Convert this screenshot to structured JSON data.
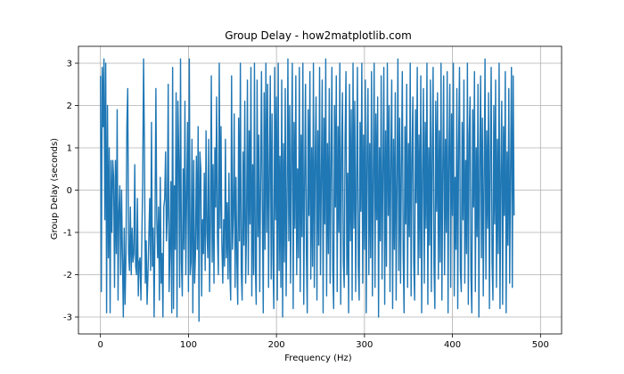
{
  "chart_data": {
    "type": "line",
    "title": "Group Delay - how2matplotlib.com",
    "xlabel": "Frequency (Hz)",
    "ylabel": "Group Delay (seconds)",
    "xlim": [
      -25,
      524
    ],
    "ylim": [
      -3.4,
      3.4
    ],
    "xticks": [
      0,
      100,
      200,
      300,
      400,
      500
    ],
    "yticks": [
      -3,
      -2,
      -1,
      0,
      1,
      2,
      3
    ],
    "grid": true,
    "color": "#1f77b4",
    "series": [
      {
        "x_start": 0,
        "x_step": 1,
        "values": [
          2.7,
          -2.4,
          2.9,
          1.5,
          3.1,
          -0.7,
          3.0,
          -2.9,
          2.0,
          -1.6,
          1.0,
          -2.9,
          0.7,
          -1.0,
          0.7,
          0.3,
          -2.3,
          0.7,
          -1.5,
          1.9,
          -2.6,
          -0.5,
          0.1,
          -2.0,
          0.0,
          -1.6,
          -3.0,
          -0.9,
          -2.7,
          -1.5,
          1.5,
          2.4,
          -1.5,
          -1.9,
          -0.4,
          -2.0,
          -0.9,
          -1.7,
          -1.5,
          0.6,
          -1.8,
          -2.0,
          -0.2,
          -2.5,
          -1.7,
          -1.6,
          -2.6,
          -1.2,
          0.2,
          3.1,
          1.0,
          -2.2,
          -1.2,
          -2.7,
          -2.0,
          -1.1,
          -0.2,
          -1.9,
          1.6,
          -1.8,
          -0.9,
          -3.0,
          -0.8,
          2.4,
          -0.7,
          -1.6,
          -0.4,
          -2.6,
          0.3,
          -2.2,
          -1.5,
          -3.0,
          -0.4,
          -0.2,
          0.9,
          -1.2,
          -0.6,
          2.5,
          -2.4,
          -1.5,
          0.2,
          -2.9,
          2.9,
          -2.8,
          0.1,
          -1.4,
          2.3,
          -3.0,
          2.1,
          0.8,
          -2.3,
          3.1,
          -1.7,
          -2.5,
          0.5,
          -1.4,
          2.1,
          -2.0,
          -0.1,
          1.6,
          -2.4,
          3.1,
          -2.0,
          -1.7,
          1.2,
          -2.9,
          0.7,
          -2.2,
          -1.5,
          0.8,
          -1.4,
          1.5,
          -3.1,
          0.9,
          0.5,
          -2.5,
          -0.7,
          -1.5,
          0.4,
          -1.9,
          1.4,
          -1.0,
          -1.6,
          1.2,
          -2.4,
          -0.8,
          2.7,
          -1.7,
          0.6,
          -2.2,
          1.0,
          -0.4,
          2.2,
          -1.1,
          -2.0,
          3.0,
          -0.9,
          1.5,
          -1.3,
          -2.2,
          -0.7,
          -1.8,
          1.2,
          -1.6,
          -0.3,
          -2.1,
          0.4,
          -1.9,
          -2.6,
          2.7,
          -1.4,
          -0.6,
          1.8,
          -2.3,
          0.3,
          -1.7,
          -2.7,
          1.7,
          -1.2,
          3.0,
          -1.9,
          -2.6,
          0.9,
          -1.3,
          2.1,
          -2.2,
          -0.9,
          2.6,
          -2.0,
          1.4,
          -0.8,
          2.9,
          -2.5,
          0.6,
          -2.0,
          3.0,
          -1.8,
          -2.7,
          2.6,
          -1.1,
          1.3,
          -2.4,
          0.2,
          2.8,
          -0.5,
          -2.9,
          2.3,
          -1.4,
          3.0,
          -1.0,
          2.5,
          -2.3,
          0.4,
          2.7,
          -2.1,
          1.8,
          -1.6,
          -2.8,
          2.9,
          -0.7,
          2.2,
          -2.6,
          3.0,
          -1.9,
          0.8,
          -2.3,
          2.6,
          -3.0,
          1.1,
          -1.7,
          2.4,
          -2.5,
          -0.3,
          3.1,
          -1.2,
          2.0,
          -2.2,
          0.9,
          3.0,
          -2.8,
          1.6,
          -0.9,
          2.7,
          -2.0,
          0.5,
          -1.6,
          2.9,
          -2.4,
          1.3,
          -1.1,
          3.0,
          -2.7,
          0.2,
          2.5,
          -1.5,
          -2.9,
          1.9,
          -0.6,
          2.8,
          -2.1,
          1.0,
          -1.8,
          3.0,
          -2.3,
          0.7,
          2.2,
          -2.6,
          1.4,
          -1.3,
          2.9,
          -2.0,
          0.3,
          2.6,
          -2.9,
          1.7,
          -0.8,
          3.1,
          -2.5,
          1.1,
          -1.5,
          2.4,
          -2.2,
          0.6,
          2.9,
          -1.9,
          -2.8,
          2.0,
          -0.4,
          2.7,
          -2.4,
          1.5,
          -1.0,
          3.0,
          -2.7,
          0.8,
          2.3,
          -1.7,
          -2.3,
          1.2,
          2.8,
          -2.0,
          0.4,
          -2.9,
          2.5,
          -1.2,
          1.9,
          -2.6,
          3.0,
          -0.9,
          2.1,
          -2.4,
          0.1,
          2.9,
          -1.8,
          -2.6,
          1.6,
          -0.5,
          3.0,
          -2.2,
          1.3,
          -1.4,
          2.6,
          -2.9,
          0.9,
          2.4,
          -2.0,
          1.1,
          -1.6,
          2.8,
          -2.5,
          0.3,
          3.0,
          -2.3,
          1.8,
          -0.7,
          2.2,
          -3.0,
          1.0,
          -1.2,
          2.7,
          -2.1,
          0.5,
          2.9,
          -2.7,
          1.4,
          -1.8,
          3.0,
          -0.6,
          2.0,
          -2.4,
          0.8,
          2.6,
          -2.8,
          1.2,
          -1.4,
          2.3,
          -2.6,
          0.2,
          3.1,
          -1.9,
          1.7,
          -2.2,
          0.6,
          2.8,
          -1.5,
          -2.9,
          1.5,
          -0.8,
          2.5,
          -2.3,
          1.1,
          -1.1,
          3.0,
          -2.5,
          0.7,
          2.2,
          -1.7,
          -2.6,
          1.9,
          -0.3,
          2.9,
          -2.0,
          1.3,
          -1.6,
          2.7,
          -2.9,
          0.4,
          2.4,
          -2.2,
          1.6,
          -0.9,
          3.0,
          -2.7,
          1.0,
          -1.3,
          2.6,
          -2.4,
          0.8,
          2.9,
          -1.8,
          -2.8,
          2.1,
          -0.5,
          2.3,
          -2.1,
          1.4,
          -1.7,
          3.0,
          -2.6,
          0.5,
          2.7,
          -2.0,
          1.2,
          -1.0,
          2.8,
          -2.9,
          0.9,
          2.5,
          -2.3,
          1.8,
          -0.6,
          3.0,
          -2.5,
          0.3,
          -1.4,
          2.4,
          -2.8,
          1.1,
          2.9,
          -1.9,
          -2.4,
          1.6,
          -0.7,
          2.6,
          -2.2,
          0.7,
          -1.5,
          3.0,
          -2.7,
          1.3,
          2.2,
          -2.0,
          -2.9,
          1.9,
          -0.4,
          2.8,
          -2.4,
          1.0,
          -1.1,
          2.5,
          -3.0,
          0.6,
          2.7,
          -1.6,
          1.7,
          -2.5,
          0.2,
          3.1,
          -2.1,
          1.4,
          -0.9,
          2.3,
          -2.8,
          0.8,
          2.9,
          -1.7,
          -2.6,
          2.0,
          -0.8,
          2.6,
          -2.3,
          1.2,
          -1.5,
          3.0,
          -2.8,
          0.4,
          2.1,
          -2.7,
          1.5,
          -0.6,
          2.8,
          -2.9,
          0.9,
          -1.3,
          2.4,
          -2.2,
          0.5,
          2.9,
          -2.3,
          2.7,
          -0.6
        ]
      }
    ]
  }
}
